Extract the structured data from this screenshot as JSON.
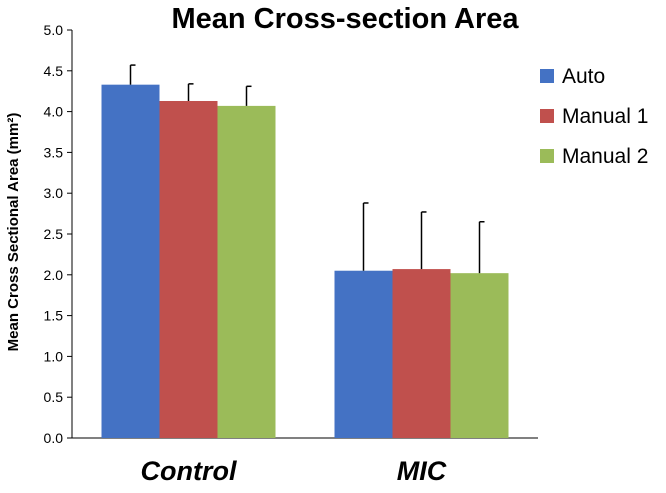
{
  "chart_data": {
    "type": "bar",
    "title": "Mean Cross-section Area",
    "ylabel": "Mean Cross Sectional Area (mm²)",
    "xlabel": "",
    "ylim": [
      0,
      5.0
    ],
    "yticks": [
      "0.0",
      "0.5",
      "1.0",
      "1.5",
      "2.0",
      "2.5",
      "3.0",
      "3.5",
      "4.0",
      "4.5",
      "5.0"
    ],
    "grid": false,
    "legend_position": "top-right",
    "categories": [
      "Control",
      "MIC"
    ],
    "series": [
      {
        "name": "Auto",
        "color": "#4472C4",
        "values": [
          4.33,
          2.05
        ],
        "errors": [
          0.24,
          0.83
        ]
      },
      {
        "name": "Manual 1",
        "color": "#C0504D",
        "values": [
          4.13,
          2.07
        ],
        "errors": [
          0.21,
          0.7
        ]
      },
      {
        "name": "Manual 2",
        "color": "#9BBB59",
        "values": [
          4.07,
          2.02
        ],
        "errors": [
          0.24,
          0.63
        ]
      }
    ]
  }
}
